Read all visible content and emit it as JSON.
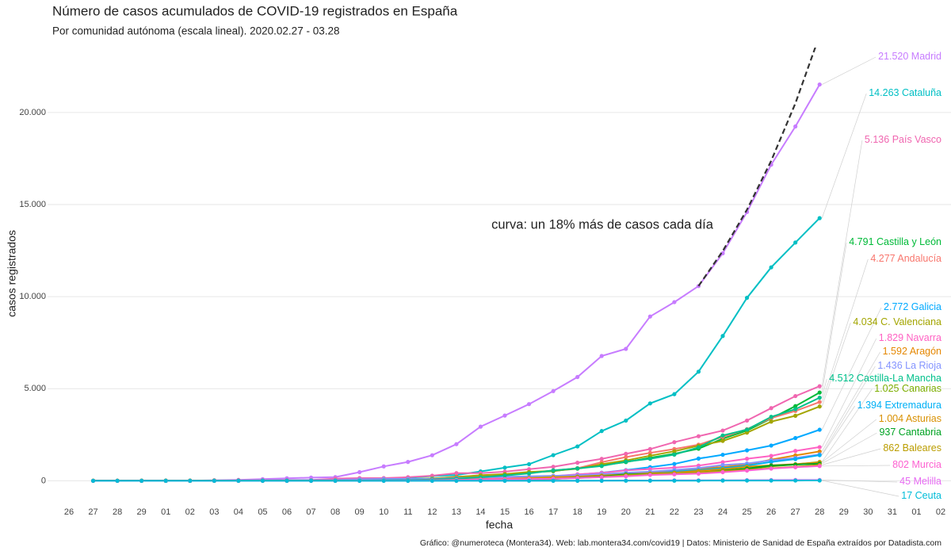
{
  "chart_data": {
    "type": "line",
    "title": "Número de casos acumulados de COVID-19 registrados en España",
    "subtitle": "Por comunidad autónoma (escala lineal). 2020.02.27 - 03.28",
    "xlabel": "fecha",
    "ylabel": "casos registrados",
    "caption": "Gráfico: @numeroteca (Montera34). Web: lab.montera34.com/covid19 | Datos: Ministerio de Sanidad de España extraídos por Datadista.com",
    "annotation": "curva: un 18% más de casos cada día",
    "categories": [
      "26",
      "27",
      "28",
      "29",
      "01",
      "02",
      "03",
      "04",
      "05",
      "06",
      "07",
      "08",
      "09",
      "10",
      "11",
      "12",
      "13",
      "14",
      "15",
      "16",
      "17",
      "18",
      "19",
      "20",
      "21",
      "22",
      "23",
      "24",
      "25",
      "26",
      "27",
      "28",
      "29",
      "30",
      "31",
      "01",
      "02"
    ],
    "ylim": [
      -800,
      23500
    ],
    "yticks": [
      0,
      {
        "value": 5000,
        "label": "5.000"
      },
      {
        "value": 10000,
        "label": "10.000"
      },
      {
        "value": 15000,
        "label": "15.000"
      },
      {
        "value": 20000,
        "label": "20.000"
      }
    ],
    "grid": true,
    "curve": {
      "color": "#333333",
      "values": [
        null,
        null,
        null,
        null,
        null,
        null,
        null,
        null,
        null,
        null,
        null,
        null,
        null,
        null,
        null,
        null,
        null,
        null,
        null,
        null,
        null,
        null,
        null,
        null,
        null,
        null,
        10575,
        12479,
        14725,
        17376,
        20503,
        24194,
        null,
        null,
        null,
        null,
        null
      ]
    },
    "series": [
      {
        "name": "Madrid",
        "end_label": "21.520",
        "color": "#c77cff",
        "values": [
          null,
          1,
          2,
          3,
          6,
          10,
          29,
          49,
          90,
          137,
          174,
          202,
          469,
          782,
          1024,
          1388,
          1990,
          2940,
          3544,
          4165,
          4871,
          5637,
          6777,
          7165,
          8921,
          9702,
          10575,
          12352,
          14597,
          17166,
          19243,
          21520,
          null,
          null,
          null,
          null,
          null
        ]
      },
      {
        "name": "Cataluña",
        "end_label": "14.263",
        "color": "#00bfc4",
        "values": [
          null,
          1,
          2,
          6,
          12,
          15,
          15,
          15,
          15,
          21,
          28,
          49,
          75,
          124,
          156,
          260,
          316,
          509,
          715,
          903,
          1394,
          1866,
          2702,
          3270,
          4203,
          4704,
          5925,
          7864,
          9937,
          11592,
          12940,
          14263,
          null,
          null,
          null,
          null,
          null
        ]
      },
      {
        "name": "País Vasco",
        "end_label": "5.136",
        "color": "#f066b0",
        "values": [
          null,
          0,
          0,
          2,
          3,
          11,
          13,
          20,
          27,
          45,
          45,
          120,
          148,
          149,
          195,
          277,
          417,
          417,
          497,
          630,
          764,
          981,
          1190,
          1465,
          1725,
          2097,
          2421,
          2728,
          3271,
          3946,
          4601,
          5136,
          null,
          null,
          null,
          null,
          null
        ]
      },
      {
        "name": "Castilla y León",
        "end_label": "4.791",
        "color": "#00ba38",
        "values": [
          null,
          0,
          0,
          0,
          1,
          2,
          2,
          3,
          8,
          11,
          11,
          13,
          14,
          25,
          60,
          92,
          157,
          258,
          355,
          454,
          522,
          686,
          837,
          1019,
          1250,
          1466,
          1744,
          2285,
          2727,
          3387,
          4057,
          4791,
          null,
          null,
          null,
          null,
          null
        ]
      },
      {
        "name": "Andalucía",
        "end_label": "4.277",
        "color": "#f8766d",
        "values": [
          null,
          1,
          1,
          6,
          7,
          12,
          12,
          12,
          12,
          13,
          20,
          38,
          54,
          71,
          90,
          115,
          219,
          269,
          357,
          437,
          557,
          683,
          1008,
          1287,
          1515,
          1725,
          1961,
          2384,
          2804,
          3406,
          3793,
          4277,
          null,
          null,
          null,
          null,
          null
        ]
      },
      {
        "name": "Galicia",
        "end_label": "2.772",
        "color": "#00a9ff",
        "values": [
          null,
          0,
          0,
          0,
          0,
          0,
          0,
          1,
          3,
          3,
          6,
          6,
          6,
          18,
          22,
          35,
          35,
          85,
          115,
          195,
          245,
          341,
          439,
          580,
          739,
          915,
          1208,
          1415,
          1653,
          1914,
          2322,
          2772,
          null,
          null,
          null,
          null,
          null
        ]
      },
      {
        "name": "C. Valenciana",
        "end_label": "4.034",
        "color": "#a3a500",
        "values": [
          null,
          1,
          2,
          2,
          14,
          15,
          19,
          19,
          19,
          19,
          19,
          37,
          47,
          60,
          94,
          130,
          197,
          301,
          364,
          477,
          541,
          655,
          902,
          1105,
          1363,
          1604,
          1902,
          2167,
          2616,
          3214,
          3532,
          4034,
          null,
          null,
          null,
          null,
          null
        ]
      },
      {
        "name": "Navarra",
        "end_label": "1.829",
        "color": "#ff61c3",
        "values": [
          null,
          0,
          0,
          0,
          0,
          0,
          1,
          1,
          2,
          3,
          3,
          9,
          16,
          30,
          40,
          55,
          79,
          109,
          133,
          183,
          256,
          353,
          430,
          564,
          640,
          711,
          829,
          1011,
          1197,
          1354,
          1622,
          1829,
          null,
          null,
          null,
          null,
          null
        ]
      },
      {
        "name": "Aragón",
        "end_label": "1.592",
        "color": "#e58700",
        "values": [
          null,
          0,
          0,
          0,
          0,
          0,
          1,
          1,
          1,
          2,
          12,
          13,
          13,
          22,
          32,
          39,
          49,
          63,
          90,
          139,
          193,
          240,
          328,
          358,
          447,
          557,
          654,
          752,
          877,
          1151,
          1380,
          1592,
          null,
          null,
          null,
          null,
          null
        ]
      },
      {
        "name": "La Rioja",
        "end_label": "1.436",
        "color": "#8494ff",
        "values": [
          null,
          0,
          1,
          1,
          2,
          9,
          11,
          13,
          29,
          36,
          38,
          43,
          84,
          103,
          102,
          102,
          146,
          183,
          217,
          241,
          273,
          302,
          364,
          434,
          498,
          585,
          691,
          859,
          938,
          1116,
          1241,
          1436,
          null,
          null,
          null,
          null,
          null
        ]
      },
      {
        "name": "Castilla-La Mancha",
        "end_label": "4.512",
        "color": "#00c08b",
        "values": [
          null,
          0,
          0,
          0,
          3,
          3,
          3,
          3,
          7,
          12,
          13,
          13,
          17,
          26,
          39,
          71,
          115,
          194,
          289,
          401,
          567,
          669,
          802,
          1044,
          1197,
          1423,
          1819,
          2465,
          2780,
          3473,
          3890,
          4512,
          null,
          null,
          null,
          null,
          null
        ]
      },
      {
        "name": "Canarias",
        "end_label": "1.025",
        "color": "#7cae00",
        "values": [
          null,
          6,
          7,
          7,
          7,
          7,
          7,
          7,
          7,
          7,
          7,
          7,
          10,
          14,
          18,
          25,
          38,
          64,
          90,
          102,
          128,
          148,
          220,
          278,
          359,
          436,
          502,
          556,
          657,
          784,
          888,
          1025,
          null,
          null,
          null,
          null,
          null
        ]
      },
      {
        "name": "Extremadura",
        "end_label": "1.394",
        "color": "#00b0f6",
        "values": [
          null,
          2,
          2,
          6,
          6,
          6,
          6,
          6,
          6,
          6,
          6,
          7,
          8,
          9,
          21,
          35,
          38,
          47,
          54,
          104,
          155,
          192,
          224,
          256,
          382,
          494,
          580,
          689,
          826,
          1024,
          1181,
          1394,
          null,
          null,
          null,
          null,
          null
        ]
      },
      {
        "name": "Asturias",
        "end_label": "1.004",
        "color": "#d89000",
        "values": [
          null,
          0,
          0,
          0,
          0,
          0,
          1,
          1,
          2,
          3,
          4,
          5,
          6,
          12,
          20,
          33,
          47,
          74,
          94,
          146,
          197,
          230,
          285,
          346,
          398,
          446,
          539,
          625,
          768,
          841,
          903,
          1004,
          null,
          null,
          null,
          null,
          null
        ]
      },
      {
        "name": "Cantabria",
        "end_label": "937",
        "color": "#00a323",
        "values": [
          null,
          0,
          0,
          1,
          1,
          1,
          10,
          10,
          10,
          10,
          10,
          10,
          11,
          12,
          13,
          24,
          26,
          27,
          34,
          64,
          91,
          181,
          225,
          350,
          373,
          394,
          446,
          553,
          668,
          823,
          880,
          937,
          null,
          null,
          null,
          null,
          null
        ]
      },
      {
        "name": "Baleares",
        "end_label": "862",
        "color": "#bb9d00",
        "values": [
          null,
          2,
          2,
          2,
          2,
          3,
          5,
          6,
          6,
          6,
          6,
          7,
          8,
          9,
          11,
          16,
          28,
          38,
          80,
          92,
          117,
          169,
          200,
          312,
          362,
          403,
          458,
          529,
          596,
          681,
          759,
          862,
          null,
          null,
          null,
          null,
          null
        ]
      },
      {
        "name": "Murcia",
        "end_label": "802",
        "color": "#fd61d1",
        "values": [
          null,
          0,
          0,
          0,
          0,
          0,
          1,
          1,
          2,
          2,
          2,
          2,
          4,
          11,
          15,
          27,
          47,
          61,
          84,
          93,
          118,
          152,
          195,
          247,
          316,
          348,
          390,
          466,
          557,
          663,
          735,
          802,
          null,
          null,
          null,
          null,
          null
        ]
      },
      {
        "name": "Melilla",
        "end_label": "45",
        "color": "#e76bf3",
        "values": [
          null,
          0,
          0,
          0,
          0,
          0,
          0,
          0,
          0,
          0,
          0,
          0,
          1,
          1,
          1,
          1,
          3,
          4,
          6,
          6,
          6,
          8,
          11,
          16,
          18,
          26,
          27,
          31,
          35,
          39,
          44,
          45,
          null,
          null,
          null,
          null,
          null
        ]
      },
      {
        "name": "Ceuta",
        "end_label": "17",
        "color": "#00bcd8",
        "values": [
          null,
          0,
          0,
          0,
          0,
          0,
          0,
          0,
          0,
          0,
          0,
          0,
          0,
          0,
          0,
          0,
          0,
          1,
          1,
          1,
          2,
          2,
          3,
          4,
          7,
          7,
          10,
          12,
          14,
          14,
          15,
          17,
          null,
          null,
          null,
          null,
          null
        ]
      }
    ]
  }
}
